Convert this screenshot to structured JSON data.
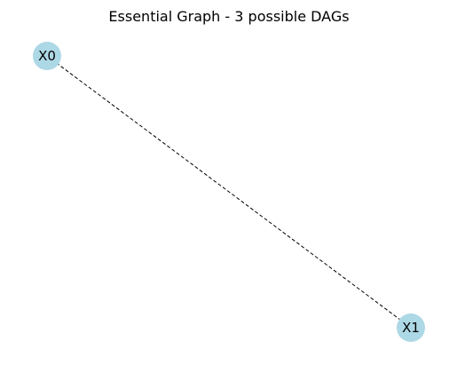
{
  "title": "Essential Graph - 3 possible DAGs",
  "style": {
    "node_color": "#add8e6",
    "edge_color": "#000000",
    "label_color": "#000000",
    "background": "#ffffff"
  },
  "graph": {
    "nodes": [
      {
        "id": "X0",
        "label": "X0"
      },
      {
        "id": "X1",
        "label": "X1"
      }
    ],
    "edges": [
      {
        "source": "X0",
        "target": "X1",
        "style": "dashed",
        "directed": false
      }
    ]
  }
}
